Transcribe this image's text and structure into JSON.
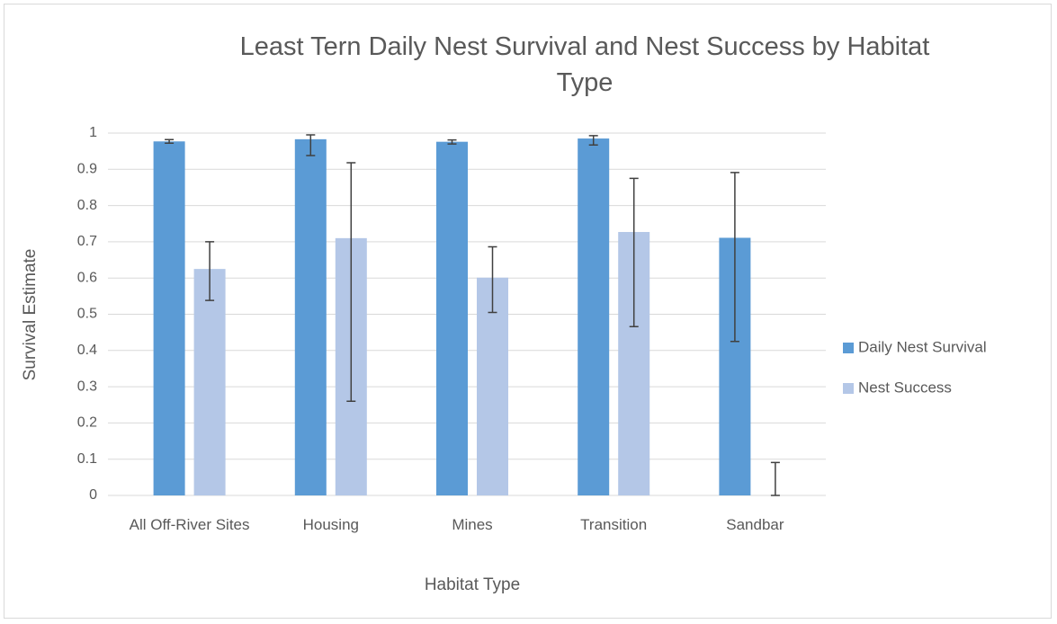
{
  "chart_data": {
    "type": "bar",
    "title": "Least Tern Daily Nest Survival and Nest Success by Habitat Type",
    "x_label": "Habitat Type",
    "y_label": "Survival Estimate",
    "categories": [
      "All Off-River Sites",
      "Housing",
      "Mines",
      "Transition",
      "Sandbar"
    ],
    "series": [
      {
        "name": "Daily Nest Survival",
        "color": "#5b9bd5",
        "values": [
          0.977,
          0.983,
          0.976,
          0.985,
          0.711
        ],
        "lower": [
          0.972,
          0.938,
          0.97,
          0.967,
          0.425
        ],
        "upper": [
          0.982,
          0.995,
          0.981,
          0.993,
          0.891
        ]
      },
      {
        "name": "Nest Success",
        "color": "#b4c7e7",
        "values": [
          0.625,
          0.71,
          0.601,
          0.727,
          0
        ],
        "lower": [
          0.538,
          0.26,
          0.505,
          0.466,
          0
        ],
        "upper": [
          0.7,
          0.918,
          0.686,
          0.875,
          0.091
        ]
      }
    ],
    "ylim": [
      0,
      1
    ],
    "yticks": [
      0,
      0.1,
      0.2,
      0.3,
      0.4,
      0.5,
      0.6,
      0.7,
      0.8,
      0.9,
      1
    ],
    "grid": true,
    "legend": "right"
  }
}
